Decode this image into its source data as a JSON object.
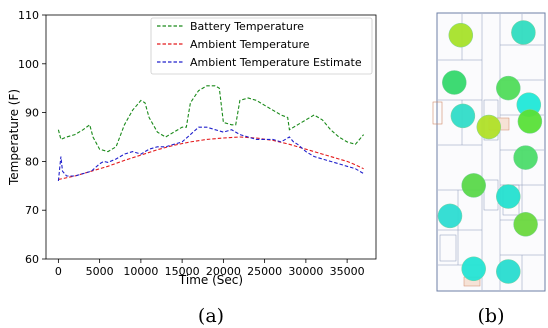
{
  "chart_data": [
    {
      "panel": "(a)",
      "type": "line",
      "xlabel": "Time (Sec)",
      "ylabel": "Temperature (F)",
      "xlim": [
        -1500,
        38500
      ],
      "ylim": [
        60,
        110
      ],
      "xticks": [
        0,
        5000,
        10000,
        15000,
        20000,
        25000,
        30000,
        35000
      ],
      "yticks": [
        60,
        70,
        80,
        90,
        100,
        110
      ],
      "grid": false,
      "legend_position": "top-right",
      "series": [
        {
          "name": "Battery Temperature",
          "color": "#1a8a1a",
          "style": "dashed",
          "x": [
            0,
            300,
            1000,
            2000,
            3000,
            3800,
            4200,
            5000,
            6000,
            7000,
            8000,
            9000,
            9500,
            10000,
            10500,
            11000,
            12000,
            12500,
            13000,
            14000,
            15000,
            15500,
            16000,
            17000,
            18000,
            19000,
            19500,
            20000,
            21000,
            21500,
            22000,
            23000,
            24000,
            25000,
            26000,
            27000,
            27800,
            28000,
            29000,
            30000,
            31000,
            32000,
            33000,
            34000,
            35000,
            36000,
            37000
          ],
          "y": [
            86.5,
            84.5,
            85,
            85.5,
            86.5,
            87.5,
            85,
            82.5,
            82,
            83,
            87.5,
            90.5,
            91.5,
            92.5,
            92,
            89,
            86,
            85.5,
            85,
            86,
            87,
            87,
            92,
            94.5,
            95.5,
            95.5,
            95,
            88,
            87.5,
            87.5,
            92.5,
            93,
            92.5,
            91.5,
            90.5,
            89.5,
            89,
            86.5,
            87.5,
            88.5,
            89.5,
            88.5,
            86.5,
            85,
            84,
            83.5,
            85.5
          ]
        },
        {
          "name": "Ambient Temperature",
          "color": "#e41a1c",
          "style": "dashed",
          "x": [
            0,
            2000,
            4000,
            6000,
            8000,
            10000,
            12000,
            14000,
            16000,
            18000,
            20000,
            22000,
            24000,
            26000,
            28000,
            30000,
            32000,
            34000,
            35000,
            36000,
            37000
          ],
          "y": [
            76.3,
            77,
            78,
            79,
            80.2,
            81.3,
            82.4,
            83.3,
            84,
            84.5,
            84.8,
            85,
            84.8,
            84.3,
            83.5,
            82.5,
            81.5,
            80.5,
            80,
            79.3,
            78.5
          ]
        },
        {
          "name": "Ambient Temperature Estimate",
          "color": "#2020cc",
          "style": "dashed",
          "x": [
            0,
            300,
            500,
            1000,
            2000,
            3000,
            4000,
            5000,
            5500,
            6000,
            7000,
            8000,
            9000,
            10000,
            11000,
            12000,
            13000,
            14000,
            15000,
            16000,
            17000,
            18000,
            19000,
            20000,
            21000,
            22000,
            23000,
            24000,
            25000,
            26000,
            27000,
            28000,
            28500,
            29000,
            30000,
            31000,
            32000,
            33000,
            34000,
            35000,
            36000,
            37000
          ],
          "y": [
            76,
            81,
            78,
            77,
            77,
            77.5,
            78,
            79.5,
            80,
            79.8,
            80.5,
            81.5,
            82,
            81.5,
            82.5,
            83,
            83,
            83.5,
            84,
            85.5,
            87,
            87,
            86.5,
            86,
            86.5,
            85.5,
            85,
            84.5,
            84.5,
            84.5,
            84,
            85,
            84,
            83.5,
            82,
            81,
            80.5,
            80,
            79.5,
            79,
            78.5,
            77.5
          ]
        }
      ]
    },
    {
      "panel": "(b)",
      "type": "other",
      "description_visible": "floor plan with circular sensor markers",
      "markers": [
        {
          "x": 0.22,
          "y": 0.08,
          "color": "#a6e22a"
        },
        {
          "x": 0.8,
          "y": 0.07,
          "color": "#30dcc0"
        },
        {
          "x": 0.16,
          "y": 0.25,
          "color": "#34d86c"
        },
        {
          "x": 0.66,
          "y": 0.27,
          "color": "#50dc5a"
        },
        {
          "x": 0.85,
          "y": 0.33,
          "color": "#20e8d8"
        },
        {
          "x": 0.24,
          "y": 0.37,
          "color": "#30dcc8"
        },
        {
          "x": 0.48,
          "y": 0.41,
          "color": "#b0e028"
        },
        {
          "x": 0.86,
          "y": 0.39,
          "color": "#58e038"
        },
        {
          "x": 0.82,
          "y": 0.52,
          "color": "#4cdc6a"
        },
        {
          "x": 0.34,
          "y": 0.62,
          "color": "#5ad84a"
        },
        {
          "x": 0.66,
          "y": 0.66,
          "color": "#24e0d0"
        },
        {
          "x": 0.12,
          "y": 0.73,
          "color": "#2cdcd2"
        },
        {
          "x": 0.82,
          "y": 0.76,
          "color": "#6ad83e"
        },
        {
          "x": 0.34,
          "y": 0.92,
          "color": "#24e4d4"
        },
        {
          "x": 0.66,
          "y": 0.93,
          "color": "#28dcd0"
        }
      ]
    }
  ],
  "captions": {
    "a": "(a)",
    "b": "(b)"
  }
}
